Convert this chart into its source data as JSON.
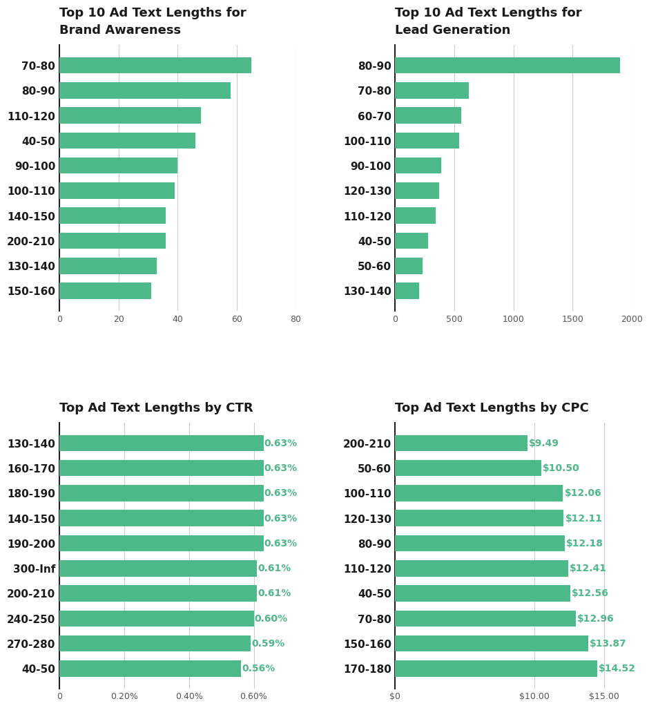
{
  "brand_awareness": {
    "title": "Top 10 Ad Text Lengths for\nBrand Awareness",
    "categories": [
      "70-80",
      "80-90",
      "110-120",
      "40-50",
      "90-100",
      "100-110",
      "140-150",
      "200-210",
      "130-140",
      "150-160"
    ],
    "values": [
      65,
      58,
      48,
      46,
      40,
      39,
      36,
      36,
      33,
      31
    ],
    "xlim": [
      0,
      80
    ],
    "xticks": [
      0,
      20,
      40,
      60,
      80
    ]
  },
  "lead_generation": {
    "title": "Top 10 Ad Text Lengths for\nLead Generation",
    "categories": [
      "80-90",
      "70-80",
      "60-70",
      "100-110",
      "90-100",
      "120-130",
      "110-120",
      "40-50",
      "50-60",
      "130-140"
    ],
    "values": [
      1900,
      620,
      560,
      540,
      390,
      370,
      340,
      280,
      230,
      200
    ],
    "xlim": [
      0,
      2000
    ],
    "xticks": [
      0,
      500,
      1000,
      1500,
      2000
    ]
  },
  "ctr": {
    "title": "Top Ad Text Lengths by CTR",
    "categories": [
      "130-140",
      "160-170",
      "180-190",
      "140-150",
      "190-200",
      "300-Inf",
      "200-210",
      "240-250",
      "270-280",
      "40-50"
    ],
    "values": [
      0.0063,
      0.0063,
      0.0063,
      0.0063,
      0.0063,
      0.0061,
      0.0061,
      0.006,
      0.0059,
      0.0056
    ],
    "labels": [
      "0.63%",
      "0.63%",
      "0.63%",
      "0.63%",
      "0.63%",
      "0.61%",
      "0.61%",
      "0.60%",
      "0.59%",
      "0.56%"
    ],
    "xlim": [
      0,
      0.0073
    ],
    "xticks": [
      0,
      0.002,
      0.004,
      0.006
    ],
    "xtick_labels": [
      "0",
      "0.20%",
      "0.40%",
      "0.60%"
    ]
  },
  "cpc": {
    "title": "Top Ad Text Lengths by CPC",
    "categories": [
      "200-210",
      "50-60",
      "100-110",
      "120-130",
      "80-90",
      "110-120",
      "40-50",
      "70-80",
      "150-160",
      "170-180"
    ],
    "values": [
      9.49,
      10.5,
      12.06,
      12.11,
      12.18,
      12.41,
      12.56,
      12.96,
      13.87,
      14.52
    ],
    "labels": [
      "$9.49",
      "$10.50",
      "$12.06",
      "$12.11",
      "$12.18",
      "$12.41",
      "$12.56",
      "$12.96",
      "$13.87",
      "$14.52"
    ],
    "xlim": [
      0,
      17
    ],
    "xticks": [
      0,
      10,
      15
    ],
    "xtick_labels": [
      "$0",
      "$10.00",
      "$15.00"
    ]
  },
  "bar_color": "#4db888",
  "label_color": "#4db888",
  "title_color": "#1a1a1a",
  "grid_color": "#cccccc",
  "tick_color": "#555555",
  "bg_color": "#ffffff"
}
